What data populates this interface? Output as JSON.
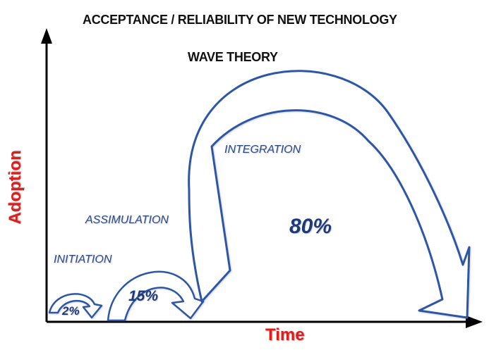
{
  "title": "ACCEPTANCE / RELIABILITY OF NEW TECHNOLOGY",
  "subtitle": "WAVE THEORY",
  "axes": {
    "y_label": "Adoption",
    "x_label": "Time",
    "label_color": "#e21b1b",
    "axis_color": "#000000"
  },
  "stages": [
    {
      "name": "INITIATION",
      "percent": "2%"
    },
    {
      "name": "ASSIMULATION",
      "percent": "15%"
    },
    {
      "name": "INTEGRATION",
      "percent": "80%"
    }
  ],
  "colors": {
    "arrow_stroke": "#2f56a6",
    "arrow_fill": "#ffffff",
    "stage_text": "#2b4a8c",
    "percent_text": "#1f3a7a"
  }
}
